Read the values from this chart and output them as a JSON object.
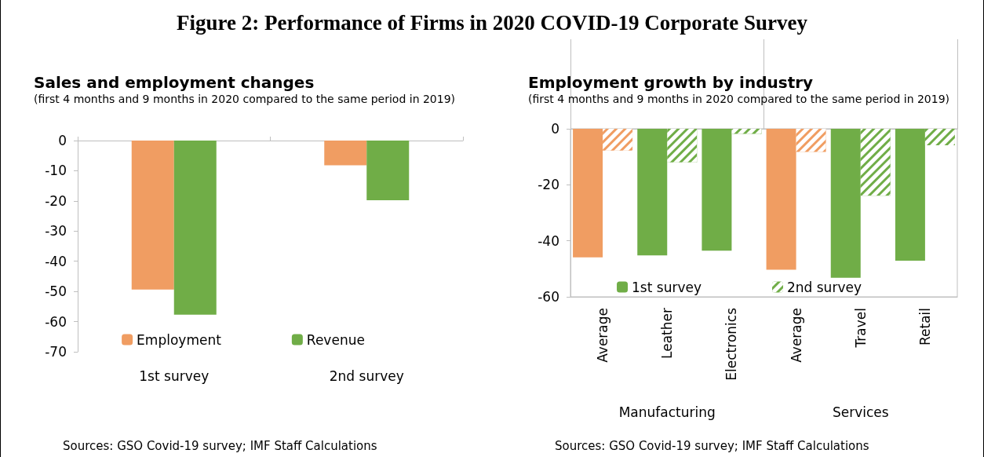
{
  "chart_data": [
    {
      "type": "bar",
      "title": "Sales and employment changes",
      "subtitle": "(first 4 months and 9 months in 2020 compared to the same period in 2019)",
      "categories": [
        "1st survey",
        "2nd survey"
      ],
      "series": [
        {
          "name": "Employment",
          "color": "#f09d62",
          "values": [
            -49.4,
            -8.2
          ]
        },
        {
          "name": "Revenue",
          "color": "#70ad47",
          "values": [
            -57.7,
            -19.8
          ]
        }
      ],
      "ylim": [
        -70,
        0
      ],
      "yticks": [
        0,
        -10,
        -20,
        -30,
        -40,
        -50,
        -60,
        -70
      ],
      "grid": false,
      "legend": "bottom",
      "annotations": [
        "Figure 2: Performance of Firms in 2020 COVID-19 Corporate Survey",
        "Sources: GSO Covid-19 survey; IMF Staff Calculations"
      ]
    },
    {
      "type": "bar",
      "title": "Employment growth by industry",
      "subtitle": "(first 4 months and 9 months in 2020 compared to the same period in 2019)",
      "categories": [
        "Average",
        "Leather",
        "Electronics",
        "Average",
        "Travel",
        "Retail"
      ],
      "series": [
        {
          "name": "1st survey",
          "color": "#70ad47",
          "colors": [
            "#f09d62",
            "#70ad47",
            "#70ad47",
            "#f09d62",
            "#70ad47",
            "#70ad47"
          ],
          "values": [
            -45.9,
            -45.2,
            -43.5,
            -50.3,
            -53.2,
            -47.1
          ]
        },
        {
          "name": "2nd survey",
          "color": "#70ad47",
          "colors": [
            "#f09d62",
            "#70ad47",
            "#70ad47",
            "#f09d62",
            "#70ad47",
            "#70ad47"
          ],
          "values": [
            -7.8,
            -12.0,
            -1.8,
            -8.3,
            -23.9,
            -5.9
          ]
        }
      ],
      "ylim": [
        -60,
        0
      ],
      "yticks": [
        0,
        -20,
        -40,
        -60
      ],
      "grid": false,
      "legend": "bottom",
      "annotations": [
        "Manufacturing",
        "Services",
        "Sources: GSO Covid-19 survey; IMF Staff Calculations"
      ]
    }
  ]
}
